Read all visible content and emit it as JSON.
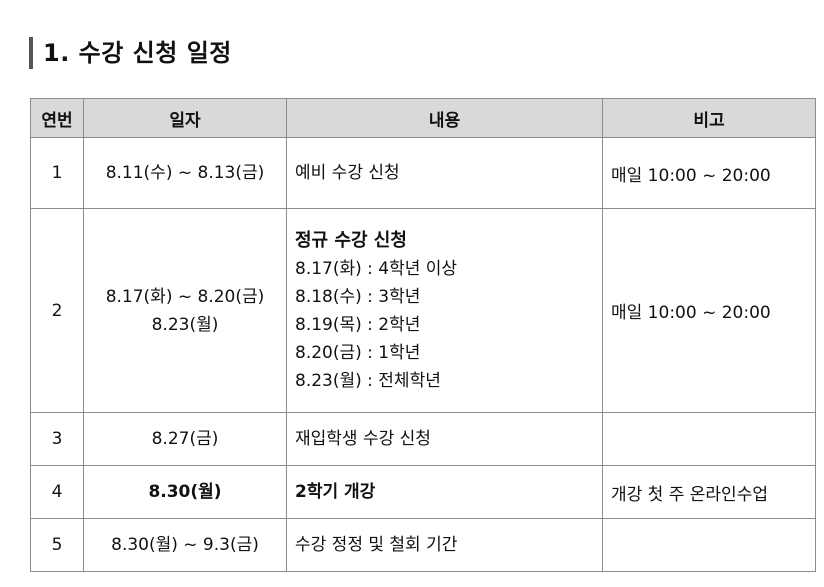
{
  "document": {
    "title": "1. 수강 신청 일정"
  },
  "table": {
    "headers": {
      "no": "연번",
      "date": "일자",
      "content": "내용",
      "note": "비고"
    },
    "rows": [
      {
        "no": "1",
        "date": [
          "8.11(수) ~ 8.13(금)"
        ],
        "content_heading": "",
        "content": [
          "예비 수강 신청"
        ],
        "note": "매일 10:00 ~ 20:00"
      },
      {
        "no": "2",
        "date": [
          "8.17(화) ~ 8.20(금)",
          "8.23(월)"
        ],
        "content_heading": "정규 수강 신청",
        "content": [
          "8.17(화) : 4학년 이상",
          "8.18(수) : 3학년",
          "8.19(목) : 2학년",
          "8.20(금) : 1학년",
          "8.23(월) : 전체학년"
        ],
        "note": "매일 10:00 ~ 20:00"
      },
      {
        "no": "3",
        "date": [
          "8.27(금)"
        ],
        "content_heading": "",
        "content": [
          "재입학생 수강 신청"
        ],
        "note": ""
      },
      {
        "no": "4",
        "date": [
          "8.30(월)"
        ],
        "content_heading": "",
        "content": [
          "2학기 개강"
        ],
        "note": "개강 첫 주 온라인수업"
      },
      {
        "no": "5",
        "date": [
          "8.30(월) ~ 9.3(금)"
        ],
        "content_heading": "",
        "content": [
          "수강 정정 및 철회 기간"
        ],
        "note": ""
      }
    ]
  }
}
